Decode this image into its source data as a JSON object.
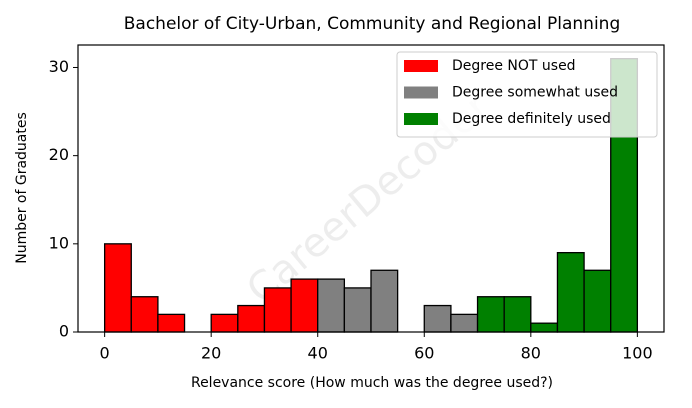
{
  "chart_data": {
    "type": "histogram",
    "title": "Bachelor of City-Urban, Community and Regional Planning",
    "xlabel": "Relevance score (How much was the degree used?)",
    "ylabel": "Number of Graduates",
    "watermark": "CareerDecoder",
    "series": [
      {
        "name": "Degree NOT used",
        "color": "#ff0000",
        "bins": [
          0,
          5,
          10,
          15,
          20,
          25,
          30,
          35,
          40
        ],
        "values": [
          10,
          4,
          2,
          0,
          2,
          3,
          5,
          6
        ]
      },
      {
        "name": "Degree somewhat used",
        "color": "#808080",
        "bins": [
          40,
          45,
          50,
          55,
          60,
          65,
          70
        ],
        "values": [
          6,
          5,
          7,
          0,
          3,
          2
        ]
      },
      {
        "name": "Degree definitely used",
        "color": "#008000",
        "bins": [
          70,
          75,
          80,
          85,
          90,
          95,
          100
        ],
        "values": [
          4,
          4,
          1,
          9,
          7,
          31
        ]
      }
    ],
    "xlim": [
      -5,
      105
    ],
    "xticks": [
      0,
      20,
      40,
      60,
      80,
      100
    ],
    "ylim": [
      0,
      32.55
    ],
    "yticks": [
      0,
      10,
      20,
      30
    ],
    "legend": "upper right",
    "grid": false
  }
}
